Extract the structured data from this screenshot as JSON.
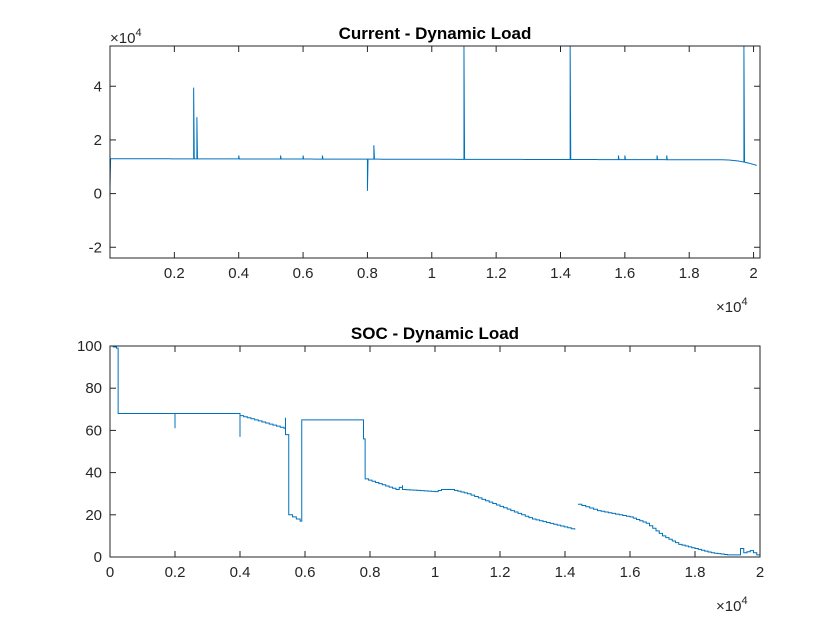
{
  "chart_data": [
    {
      "type": "line",
      "title": "Current - Dynamic Load",
      "xlabel": "",
      "ylabel": "",
      "x_multiplier": "×10",
      "x_multiplier_exp": "4",
      "y_multiplier": "×10",
      "y_multiplier_exp": "4",
      "xlim": [
        0.0,
        2.02
      ],
      "ylim": [
        -2.4,
        5.5
      ],
      "xticks": [
        0.2,
        0.4,
        0.6,
        0.8,
        1,
        1.2,
        1.4,
        1.6,
        1.8,
        2
      ],
      "xtick_labels": [
        "0.2",
        "0.4",
        "0.6",
        "0.8",
        "1",
        "1.2",
        "1.4",
        "1.6",
        "1.8",
        "2"
      ],
      "yticks": [
        -2,
        0,
        2,
        4
      ],
      "ytick_labels": [
        "-2",
        "0",
        "2",
        "4"
      ],
      "grid": false,
      "line_color": "#0072BD",
      "baseline": {
        "start": 1.3,
        "end": 1.26,
        "drop_start_x": 1.9,
        "final_x": 2.01,
        "final_y": 1.05
      },
      "events": [
        {
          "x": 0.0,
          "y": 0.2
        },
        {
          "x": 0.26,
          "y": 3.95
        },
        {
          "x": 0.27,
          "y": 2.85
        },
        {
          "x": 0.4,
          "y": 1.42
        },
        {
          "x": 0.53,
          "y": 1.42
        },
        {
          "x": 0.6,
          "y": 1.42
        },
        {
          "x": 0.66,
          "y": 1.42
        },
        {
          "x": 0.8,
          "y": 0.1
        },
        {
          "x": 0.82,
          "y": 1.8
        },
        {
          "x": 1.1,
          "y": 5.5
        },
        {
          "x": 1.43,
          "y": 5.5
        },
        {
          "x": 1.58,
          "y": 1.42
        },
        {
          "x": 1.6,
          "y": 1.42
        },
        {
          "x": 1.7,
          "y": 1.42
        },
        {
          "x": 1.73,
          "y": 1.42
        },
        {
          "x": 1.97,
          "y": 5.5
        }
      ]
    },
    {
      "type": "line",
      "title": "SOC - Dynamic Load",
      "xlabel": "",
      "ylabel": "",
      "x_multiplier": "×10",
      "x_multiplier_exp": "4",
      "xlim": [
        0,
        2
      ],
      "ylim": [
        0,
        100
      ],
      "xticks": [
        0,
        0.2,
        0.4,
        0.6,
        0.8,
        1,
        1.2,
        1.4,
        1.6,
        1.8,
        2
      ],
      "xtick_labels": [
        "0",
        "0.2",
        "0.4",
        "0.6",
        "0.8",
        "1",
        "1.2",
        "1.4",
        "1.6",
        "1.8",
        "2"
      ],
      "yticks": [
        0,
        20,
        40,
        60,
        80,
        100
      ],
      "ytick_labels": [
        "0",
        "20",
        "40",
        "60",
        "80",
        "100"
      ],
      "grid": false,
      "line_color": "#0072BD",
      "series": [
        {
          "x": [
            0.0,
            0.02,
            0.025,
            0.2,
            0.2,
            0.4,
            0.4,
            0.535,
            0.54,
            0.54,
            0.55,
            0.585,
            0.59,
            0.6,
            0.78,
            0.785,
            0.88,
            0.9,
            0.9,
            1.0,
            1.02,
            1.05,
            1.1,
            1.2,
            1.3,
            1.43
          ],
          "y": [
            100,
            99,
            68,
            61,
            68,
            57,
            67,
            61,
            66,
            58,
            20,
            17,
            65,
            65,
            56,
            37,
            32,
            34,
            32,
            31,
            32,
            32,
            30,
            24,
            18,
            13
          ]
        },
        {
          "x": [
            1.44,
            1.5,
            1.6,
            1.65,
            1.7,
            1.75,
            1.8,
            1.85,
            1.9,
            1.93,
            1.94,
            1.95,
            1.97,
            1.99,
            2.0
          ],
          "y": [
            25,
            22,
            19,
            16,
            10,
            6,
            4,
            2,
            1,
            1,
            4,
            2,
            3,
            1,
            1
          ]
        }
      ]
    }
  ]
}
